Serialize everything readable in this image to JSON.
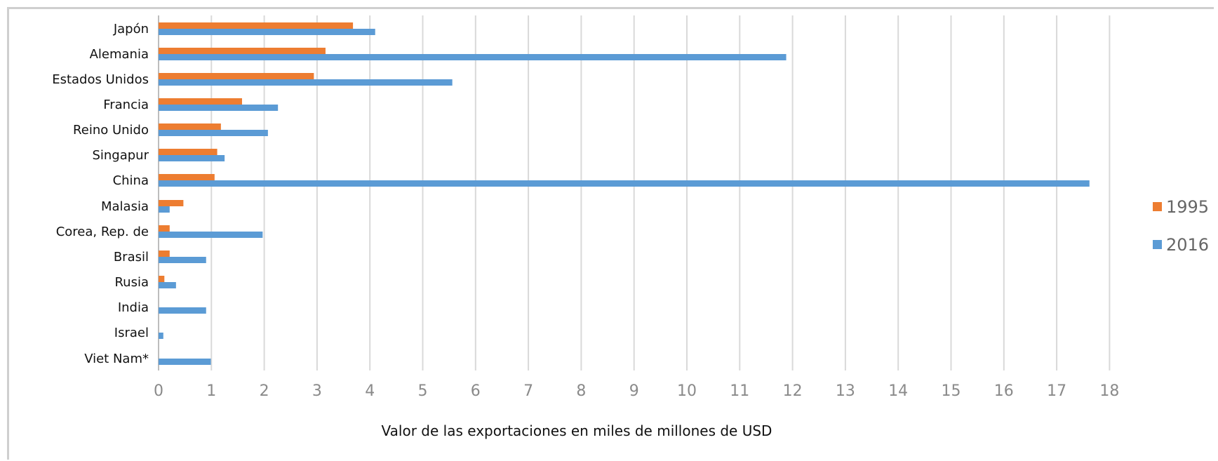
{
  "chart_data": {
    "type": "bar",
    "orientation": "horizontal",
    "categories": [
      "Japón",
      "Alemania",
      "Estados Unidos",
      "Francia",
      "Reino Unido",
      "Singapur",
      "China",
      "Malasia",
      "Corea, Rep. de",
      "Brasil",
      "Rusia",
      "India",
      "Israel",
      "Viet Nam*"
    ],
    "series": [
      {
        "name": "1995",
        "color": "#ED7D31",
        "values": [
          3.68,
          3.16,
          2.94,
          1.58,
          1.18,
          1.11,
          1.06,
          0.47,
          0.21,
          0.21,
          0.11,
          0,
          0,
          0
        ]
      },
      {
        "name": "2016",
        "color": "#5B9BD5",
        "values": [
          4.1,
          11.88,
          5.56,
          2.26,
          2.07,
          1.25,
          17.62,
          0.21,
          1.97,
          0.9,
          0.33,
          0.9,
          0.09,
          0.99
        ]
      }
    ],
    "xlabel": "Valor de las exportaciones en miles de millones de USD",
    "xlim": [
      0,
      18
    ],
    "xticks": [
      "0",
      "1",
      "2",
      "3",
      "4",
      "5",
      "6",
      "7",
      "8",
      "9",
      "10",
      "11",
      "12",
      "13",
      "14",
      "15",
      "16",
      "17",
      "18"
    ],
    "grid": "vertical",
    "legend_position": "right"
  }
}
